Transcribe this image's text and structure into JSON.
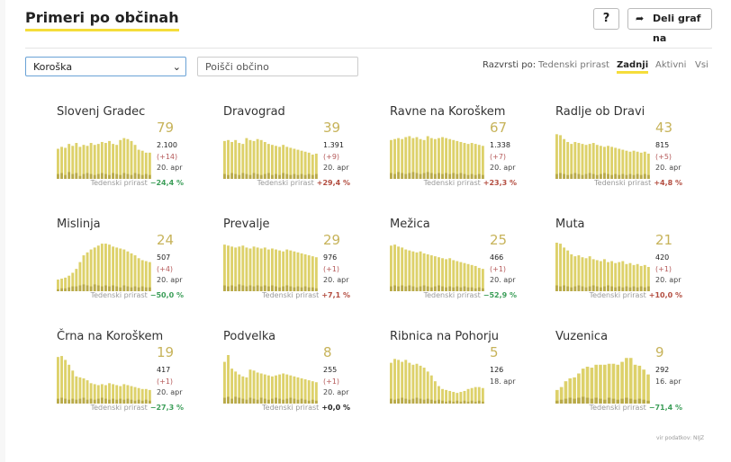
{
  "header": {
    "title": "Primeri po občinah",
    "help_label": "?",
    "share_label": "Deli graf na"
  },
  "controls": {
    "region_selected": "Koroška",
    "search_placeholder": "Poišči občino",
    "sort_label": "Razvrsti po:",
    "sort_options": [
      "Tedenski prirast",
      "Zadnji",
      "Aktivni",
      "Vsi"
    ],
    "sort_active": "Zadnji"
  },
  "colors": {
    "bar": "#ddd16a",
    "bar_new": "#9a8a2e",
    "accent": "#f5dd3b",
    "down": "#3c9e59",
    "up": "#b34d40"
  },
  "footer": {
    "source": "vir podatkov: NIJZ"
  },
  "chart_data": [
    {
      "type": "bar",
      "title": "Slovenj Gradec",
      "active": "79",
      "total": "2.100",
      "change": "(+14)",
      "date": "20. apr",
      "weekly_label": "Tedenski prirast",
      "weekly": "−24,4 %",
      "trend": "down",
      "values": [
        62,
        66,
        64,
        72,
        68,
        74,
        66,
        70,
        68,
        74,
        70,
        72,
        76,
        74,
        78,
        72,
        70,
        80,
        84,
        82,
        78,
        70,
        60,
        58,
        54,
        54
      ],
      "new": [
        10,
        12,
        8,
        14,
        10,
        12,
        6,
        10,
        12,
        10,
        8,
        10,
        12,
        10,
        8,
        12,
        10,
        8,
        12,
        10,
        8,
        12,
        10,
        8,
        10,
        8
      ]
    },
    {
      "type": "bar",
      "title": "Dravograd",
      "active": "39",
      "total": "1.391",
      "change": "(+9)",
      "date": "20. apr",
      "weekly_label": "Tedenski prirast",
      "weekly": "+29,4 %",
      "trend": "up",
      "values": [
        78,
        80,
        76,
        80,
        74,
        72,
        84,
        80,
        78,
        82,
        80,
        76,
        72,
        70,
        68,
        66,
        70,
        66,
        64,
        62,
        60,
        58,
        56,
        54,
        50,
        52
      ],
      "new": [
        10,
        8,
        12,
        10,
        8,
        12,
        10,
        8,
        12,
        10,
        8,
        10,
        12,
        8,
        10,
        8,
        12,
        10,
        8,
        10,
        8,
        10,
        8,
        10,
        8,
        10
      ]
    },
    {
      "type": "bar",
      "title": "Ravne na Koroškem",
      "active": "67",
      "total": "1.338",
      "change": "(+7)",
      "date": "20. apr",
      "weekly_label": "Tedenski prirast",
      "weekly": "+23,3 %",
      "trend": "up",
      "values": [
        80,
        82,
        84,
        82,
        86,
        88,
        84,
        86,
        82,
        80,
        88,
        84,
        82,
        84,
        86,
        84,
        82,
        80,
        78,
        76,
        74,
        72,
        74,
        72,
        70,
        68
      ],
      "new": [
        12,
        10,
        14,
        12,
        10,
        12,
        14,
        12,
        10,
        12,
        14,
        12,
        10,
        12,
        10,
        12,
        10,
        12,
        10,
        12,
        10,
        8,
        10,
        8,
        10,
        8
      ]
    },
    {
      "type": "bar",
      "title": "Radlje ob Dravi",
      "active": "43",
      "total": "815",
      "change": "(+5)",
      "date": "20. apr",
      "weekly_label": "Tedenski prirast",
      "weekly": "+4,8 %",
      "trend": "up",
      "values": [
        92,
        90,
        82,
        76,
        72,
        76,
        74,
        72,
        70,
        72,
        74,
        70,
        68,
        66,
        68,
        66,
        64,
        62,
        60,
        58,
        56,
        58,
        56,
        54,
        56,
        52
      ],
      "new": [
        10,
        12,
        10,
        8,
        10,
        12,
        10,
        8,
        10,
        12,
        10,
        8,
        10,
        12,
        10,
        8,
        10,
        8,
        10,
        8,
        10,
        8,
        10,
        8,
        10,
        8
      ]
    },
    {
      "type": "bar",
      "title": "Mislinja",
      "active": "24",
      "total": "507",
      "change": "(+4)",
      "date": "20. apr",
      "weekly_label": "Tedenski prirast",
      "weekly": "−50,0 %",
      "trend": "down",
      "values": [
        24,
        26,
        28,
        32,
        38,
        46,
        60,
        74,
        80,
        86,
        90,
        94,
        98,
        98,
        96,
        92,
        90,
        88,
        86,
        82,
        78,
        74,
        68,
        64,
        62,
        60
      ],
      "new": [
        4,
        6,
        6,
        8,
        10,
        10,
        12,
        14,
        12,
        10,
        14,
        12,
        10,
        12,
        10,
        12,
        10,
        8,
        12,
        10,
        8,
        10,
        8,
        10,
        8,
        8
      ]
    },
    {
      "type": "bar",
      "title": "Prevalje",
      "active": "29",
      "total": "976",
      "change": "(+1)",
      "date": "20. apr",
      "weekly_label": "Tedenski prirast",
      "weekly": "+7,1 %",
      "trend": "up",
      "values": [
        96,
        94,
        92,
        90,
        92,
        94,
        90,
        88,
        92,
        90,
        88,
        90,
        86,
        88,
        86,
        84,
        82,
        86,
        84,
        82,
        80,
        78,
        76,
        74,
        72,
        70
      ],
      "new": [
        12,
        10,
        12,
        10,
        14,
        12,
        10,
        12,
        10,
        12,
        10,
        12,
        10,
        12,
        10,
        8,
        10,
        12,
        10,
        8,
        10,
        8,
        10,
        8,
        8,
        6
      ]
    },
    {
      "type": "bar",
      "title": "Mežica",
      "active": "25",
      "total": "466",
      "change": "(+1)",
      "date": "20. apr",
      "weekly_label": "Tedenski prirast",
      "weekly": "−52,9 %",
      "trend": "down",
      "values": [
        94,
        96,
        92,
        90,
        86,
        84,
        82,
        80,
        82,
        78,
        76,
        74,
        72,
        70,
        68,
        66,
        68,
        64,
        62,
        60,
        58,
        56,
        54,
        52,
        48,
        46
      ],
      "new": [
        10,
        12,
        10,
        12,
        10,
        12,
        10,
        8,
        10,
        12,
        10,
        8,
        10,
        12,
        10,
        8,
        10,
        8,
        10,
        8,
        10,
        8,
        8,
        6,
        8,
        6
      ]
    },
    {
      "type": "bar",
      "title": "Muta",
      "active": "21",
      "total": "420",
      "change": "(+1)",
      "date": "20. apr",
      "weekly_label": "Tedenski prirast",
      "weekly": "+10,0 %",
      "trend": "up",
      "values": [
        100,
        98,
        90,
        84,
        76,
        72,
        74,
        70,
        68,
        72,
        66,
        64,
        62,
        66,
        60,
        62,
        58,
        60,
        62,
        56,
        58,
        54,
        56,
        52,
        54,
        50
      ],
      "new": [
        12,
        10,
        12,
        10,
        8,
        10,
        12,
        10,
        8,
        10,
        12,
        10,
        8,
        10,
        12,
        10,
        8,
        10,
        8,
        10,
        8,
        10,
        8,
        10,
        8,
        10
      ]
    },
    {
      "type": "bar",
      "title": "Črna na Koroškem",
      "active": "19",
      "total": "417",
      "change": "(+1)",
      "date": "20. apr",
      "weekly_label": "Tedenski prirast",
      "weekly": "−27,3 %",
      "trend": "down",
      "values": [
        96,
        98,
        90,
        80,
        68,
        56,
        54,
        52,
        48,
        42,
        40,
        38,
        40,
        38,
        42,
        40,
        38,
        36,
        40,
        38,
        36,
        34,
        32,
        30,
        30,
        28
      ],
      "new": [
        10,
        12,
        10,
        8,
        10,
        8,
        10,
        12,
        8,
        10,
        8,
        10,
        12,
        10,
        8,
        10,
        8,
        10,
        8,
        10,
        8,
        6,
        8,
        6,
        8,
        6
      ]
    },
    {
      "type": "bar",
      "title": "Podvelka",
      "active": "8",
      "total": "255",
      "change": "(+1)",
      "date": "20. apr",
      "weekly_label": "Tedenski prirast",
      "weekly": "+0,0 %",
      "trend": "zero",
      "values": [
        86,
        100,
        72,
        66,
        60,
        56,
        54,
        70,
        68,
        64,
        62,
        60,
        58,
        56,
        58,
        60,
        62,
        60,
        58,
        56,
        54,
        52,
        50,
        48,
        46,
        44
      ],
      "new": [
        12,
        14,
        10,
        14,
        12,
        10,
        8,
        12,
        10,
        8,
        12,
        10,
        8,
        10,
        12,
        10,
        8,
        10,
        12,
        10,
        8,
        10,
        8,
        6,
        8,
        6
      ]
    },
    {
      "type": "bar",
      "title": "Ribnica na Pohorju",
      "active": "5",
      "total": "126",
      "change": "",
      "date": "18. apr",
      "weekly_label": "",
      "weekly": "",
      "trend": "none",
      "values": [
        84,
        92,
        90,
        86,
        90,
        84,
        80,
        82,
        78,
        74,
        66,
        58,
        46,
        36,
        30,
        28,
        26,
        24,
        22,
        24,
        26,
        30,
        32,
        34,
        34,
        32
      ],
      "new": [
        10,
        8,
        10,
        12,
        10,
        8,
        10,
        12,
        10,
        8,
        10,
        8,
        6,
        8,
        6,
        4,
        6,
        4,
        6,
        4,
        6,
        4,
        6,
        4,
        6,
        4
      ]
    },
    {
      "type": "bar",
      "title": "Vuzenica",
      "active": "9",
      "total": "292",
      "change": "",
      "date": "16. apr",
      "weekly_label": "Tedenski prirast",
      "weekly": "−71,4 %",
      "trend": "down",
      "values": [
        28,
        34,
        46,
        52,
        54,
        62,
        72,
        76,
        74,
        80,
        80,
        80,
        82,
        82,
        80,
        86,
        94,
        94,
        80,
        78,
        70,
        60
      ],
      "new": [
        6,
        8,
        10,
        12,
        10,
        12,
        14,
        12,
        10,
        12,
        10,
        8,
        12,
        10,
        8,
        10,
        12,
        10,
        8,
        10,
        8,
        6
      ]
    }
  ]
}
